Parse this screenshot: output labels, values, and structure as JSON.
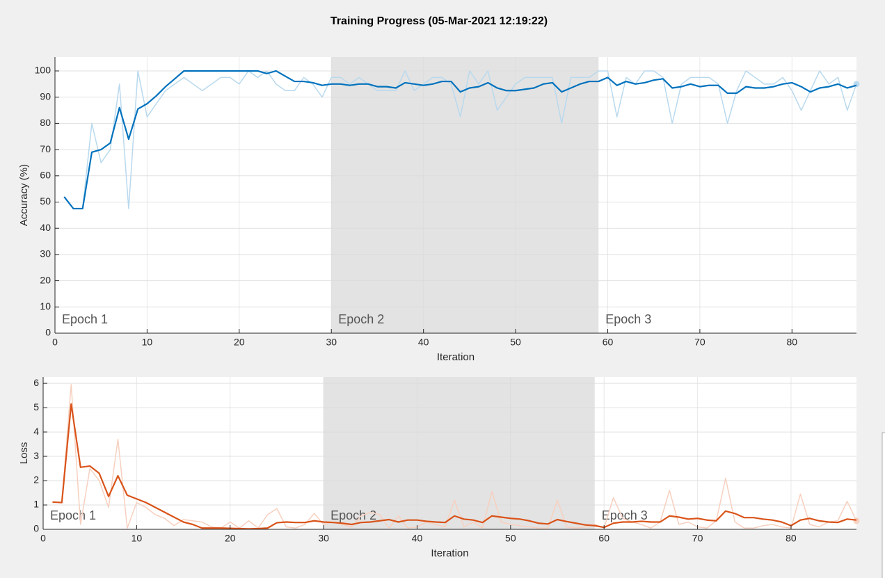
{
  "chart_data": [
    {
      "type": "line",
      "title": "Training Progress (05-Mar-2021 12:19:22)",
      "xlabel": "Iteration",
      "ylabel": "Accuracy (%)",
      "x": [
        1,
        2,
        3,
        4,
        5,
        6,
        7,
        8,
        9,
        10,
        11,
        12,
        13,
        14,
        15,
        16,
        17,
        18,
        19,
        20,
        21,
        22,
        23,
        24,
        25,
        26,
        27,
        28,
        29,
        30,
        31,
        32,
        33,
        34,
        35,
        36,
        37,
        38,
        39,
        40,
        41,
        42,
        43,
        44,
        45,
        46,
        47,
        48,
        49,
        50,
        51,
        52,
        53,
        54,
        55,
        56,
        57,
        58,
        59,
        60,
        61,
        62,
        63,
        64,
        65,
        66,
        67,
        68,
        69,
        70,
        71,
        72,
        73,
        74,
        75,
        76,
        77,
        78,
        79,
        80,
        81,
        82,
        83,
        84,
        85,
        86,
        87
      ],
      "series": [
        {
          "color": "#b9d9ee",
          "end_marker": true,
          "values": [
            52,
            47.5,
            47.5,
            80,
            65,
            70,
            95,
            47.5,
            100,
            82.5,
            87.5,
            92.5,
            95,
            97.5,
            95,
            92.5,
            95,
            97.5,
            97.5,
            95,
            100,
            97.5,
            100,
            95,
            92.5,
            92.5,
            97.5,
            95,
            90,
            97.5,
            97.5,
            95,
            97.5,
            95,
            92.5,
            92.5,
            92.5,
            100,
            92.5,
            95,
            97.5,
            97.5,
            95,
            82.5,
            100,
            95,
            100,
            85,
            90,
            95,
            97.5,
            97.5,
            97.5,
            97.5,
            80,
            97.5,
            97.5,
            97.5,
            100,
            100,
            82.5,
            97.5,
            95,
            100,
            100,
            97.5,
            80,
            95,
            97.5,
            97.5,
            97.5,
            95,
            80,
            92.5,
            100,
            97.5,
            95,
            95,
            97.5,
            92.5,
            85,
            92.5,
            100,
            95,
            97.5,
            85,
            95
          ]
        },
        {
          "color": "#0072bd",
          "values": [
            52,
            47.5,
            47.5,
            69,
            70,
            72.5,
            86,
            74,
            85.5,
            87.5,
            90.5,
            94,
            97,
            100,
            100,
            100,
            100,
            100,
            100,
            100,
            100,
            100,
            99,
            100,
            98,
            96,
            96,
            95.5,
            94.5,
            95,
            95,
            94.5,
            95,
            95,
            94,
            94,
            93.5,
            95.5,
            95,
            94.5,
            95,
            96,
            96,
            92,
            93.5,
            94,
            95.5,
            93.5,
            92.5,
            92.5,
            93,
            93.5,
            95,
            95.5,
            92,
            93.5,
            95,
            96,
            96,
            97.5,
            94.5,
            96,
            95,
            95.5,
            96.5,
            97,
            93.5,
            94,
            95,
            94,
            94.5,
            94.5,
            91.5,
            91.5,
            94,
            93.5,
            93.5,
            94,
            95,
            95.5,
            94,
            92,
            93.5,
            94,
            95,
            93.5,
            94.5
          ]
        }
      ],
      "xlim": [
        0,
        87
      ],
      "ylim": [
        0,
        105.3
      ],
      "xticks": [
        0,
        10,
        20,
        30,
        40,
        50,
        60,
        70,
        80
      ],
      "yticks": [
        0,
        10,
        20,
        30,
        40,
        50,
        60,
        70,
        80,
        90,
        100
      ],
      "grid": true,
      "epochs": [
        {
          "label": "Epoch 1",
          "start": 0,
          "end": 30,
          "shaded": false
        },
        {
          "label": "Epoch 2",
          "start": 30,
          "end": 59,
          "shaded": true
        },
        {
          "label": "Epoch 3",
          "start": 59,
          "end": 87,
          "shaded": false
        }
      ]
    },
    {
      "type": "line",
      "xlabel": "Iteration",
      "ylabel": "Loss",
      "x": [
        1,
        2,
        3,
        4,
        5,
        6,
        7,
        8,
        9,
        10,
        11,
        12,
        13,
        14,
        15,
        16,
        17,
        18,
        19,
        20,
        21,
        22,
        23,
        24,
        25,
        26,
        27,
        28,
        29,
        30,
        31,
        32,
        33,
        34,
        35,
        36,
        37,
        38,
        39,
        40,
        41,
        42,
        43,
        44,
        45,
        46,
        47,
        48,
        49,
        50,
        51,
        52,
        53,
        54,
        55,
        56,
        57,
        58,
        59,
        60,
        61,
        62,
        63,
        64,
        65,
        66,
        67,
        68,
        69,
        70,
        71,
        72,
        73,
        74,
        75,
        76,
        77,
        78,
        79,
        80,
        81,
        82,
        83,
        84,
        85,
        86,
        87
      ],
      "series": [
        {
          "color": "#f7d0bf",
          "end_marker": true,
          "values": [
            1.12,
            1.1,
            5.95,
            0.2,
            2.5,
            2,
            0.9,
            3.7,
            0.05,
            1.1,
            0.9,
            0.6,
            0.45,
            0.15,
            0.4,
            0.35,
            0.3,
            0.1,
            0.05,
            0.3,
            0.05,
            0.35,
            0.05,
            0.6,
            0.85,
            0.1,
            0.05,
            0.2,
            0.65,
            0.2,
            0.3,
            0.2,
            0.1,
            0.55,
            0.7,
            0.6,
            0.05,
            0.55,
            0.05,
            0.1,
            0.3,
            0.2,
            0.1,
            1.2,
            0.1,
            0.3,
            0.05,
            1.55,
            0.3,
            0.2,
            0.15,
            0.1,
            0.05,
            0.05,
            1.2,
            0.1,
            0.05,
            0.1,
            0.2,
            0.05,
            1.3,
            0.45,
            0.3,
            0.2,
            0.05,
            0.3,
            1.6,
            0.2,
            0.3,
            0.1,
            0.05,
            0.35,
            2.1,
            0.3,
            0.05,
            0.05,
            0.15,
            0.2,
            0.1,
            0.05,
            1.45,
            0.2,
            0.1,
            0.3,
            0.35,
            1.15,
            0.35
          ]
        },
        {
          "color": "#d95319",
          "values": [
            1.12,
            1.1,
            5.15,
            2.55,
            2.6,
            2.3,
            1.35,
            2.2,
            1.4,
            1.25,
            1.1,
            0.9,
            0.7,
            0.5,
            0.3,
            0.2,
            0.05,
            0.05,
            0.05,
            0.04,
            0.03,
            0.02,
            0.03,
            0.05,
            0.27,
            0.3,
            0.28,
            0.28,
            0.35,
            0.3,
            0.28,
            0.25,
            0.2,
            0.28,
            0.3,
            0.35,
            0.4,
            0.3,
            0.38,
            0.38,
            0.33,
            0.3,
            0.28,
            0.55,
            0.42,
            0.38,
            0.28,
            0.55,
            0.5,
            0.45,
            0.42,
            0.35,
            0.25,
            0.22,
            0.4,
            0.32,
            0.25,
            0.18,
            0.15,
            0.08,
            0.25,
            0.3,
            0.3,
            0.33,
            0.3,
            0.3,
            0.55,
            0.5,
            0.42,
            0.45,
            0.38,
            0.35,
            0.75,
            0.65,
            0.48,
            0.48,
            0.42,
            0.38,
            0.3,
            0.15,
            0.38,
            0.45,
            0.35,
            0.3,
            0.28,
            0.42,
            0.38
          ]
        }
      ],
      "xlim": [
        0,
        87
      ],
      "ylim": [
        0,
        6.26
      ],
      "xticks": [
        0,
        10,
        20,
        30,
        40,
        50,
        60,
        70,
        80
      ],
      "yticks": [
        0,
        1,
        2,
        3,
        4,
        5,
        6
      ],
      "grid": true,
      "epochs": [
        {
          "label": "Epoch 1",
          "start": 0,
          "end": 30,
          "shaded": false
        },
        {
          "label": "Epoch 2",
          "start": 30,
          "end": 59,
          "shaded": true
        },
        {
          "label": "Epoch 3",
          "start": 59,
          "end": 87,
          "shaded": false
        }
      ]
    }
  ]
}
